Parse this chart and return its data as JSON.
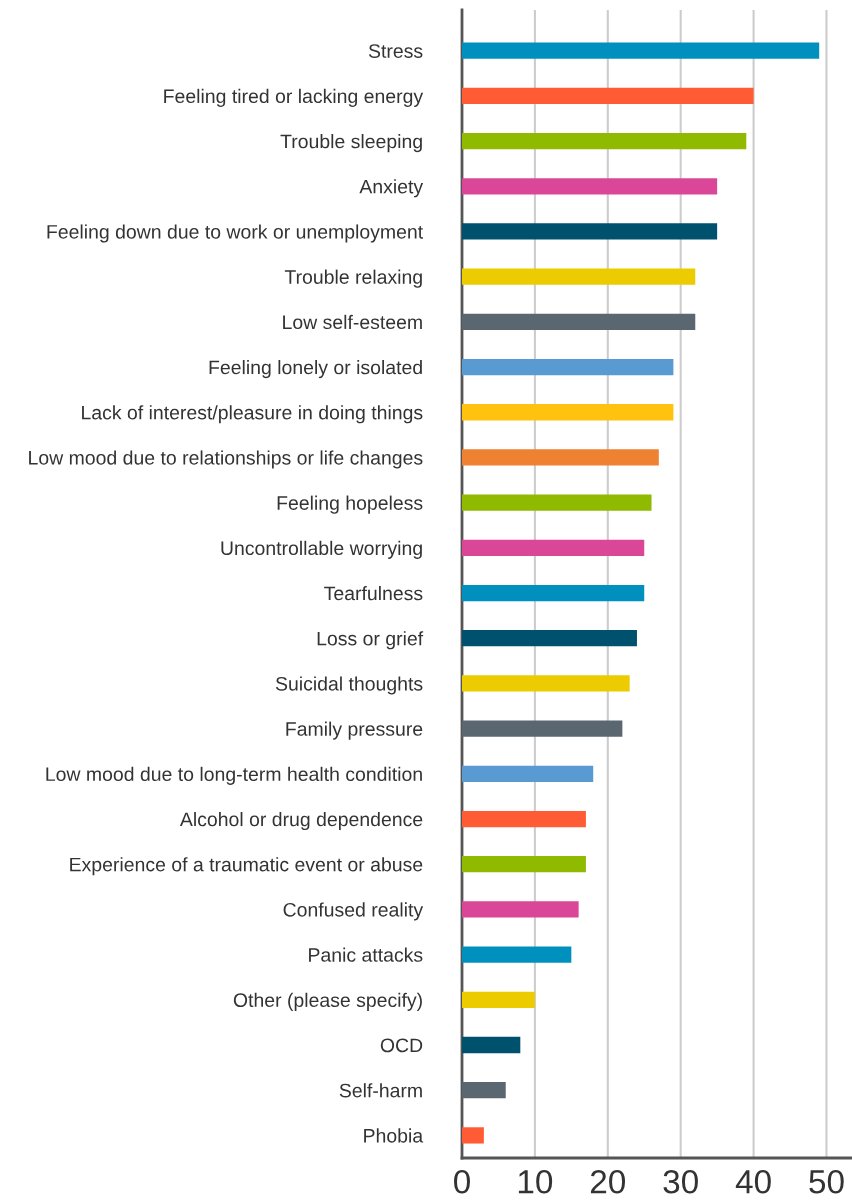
{
  "chart_data": {
    "type": "bar",
    "orientation": "horizontal",
    "categories": [
      "Stress",
      "Feeling tired or lacking energy",
      "Trouble sleeping",
      "Anxiety",
      "Feeling down due to work or unemployment",
      "Trouble relaxing",
      "Low self-esteem",
      "Feeling lonely or isolated",
      "Lack of interest/pleasure in doing things",
      "Low mood due to relationships or life changes",
      "Feeling hopeless",
      "Uncontrollable worrying",
      "Tearfulness",
      "Loss or grief",
      "Suicidal thoughts",
      "Family pressure",
      "Low mood due to long-term health condition",
      "Alcohol or drug dependence",
      "Experience of a traumatic event or abuse",
      "Confused reality",
      "Panic attacks",
      "Other (please specify)",
      "OCD",
      "Self-harm",
      "Phobia"
    ],
    "values": [
      49,
      40,
      39,
      35,
      35,
      32,
      32,
      29,
      29,
      27,
      26,
      25,
      25,
      24,
      23,
      22,
      18,
      17,
      17,
      16,
      15,
      10,
      8,
      6,
      3
    ],
    "colors": [
      "#0090be",
      "#ff5c35",
      "#8fba00",
      "#da4799",
      "#00516d",
      "#eccb00",
      "#5b6770",
      "#5a9ad3",
      "#ffc20e",
      "#ef8132",
      "#8fba00",
      "#da4799",
      "#0090be",
      "#00516d",
      "#eccb00",
      "#5b6770",
      "#5a9ad3",
      "#ff5c35",
      "#8fba00",
      "#da4799",
      "#0090be",
      "#eccb00",
      "#00516d",
      "#5b6770",
      "#ff5c35"
    ],
    "xlim": [
      0,
      53.5
    ],
    "xticks": [
      0,
      10,
      20,
      30,
      40,
      50
    ],
    "grid": "x"
  }
}
